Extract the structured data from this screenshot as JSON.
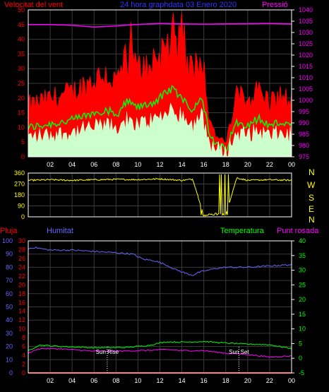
{
  "header": {
    "left_title": "Velocitat del vent",
    "center_title": "24 hora graphdata  03 Enero 2020",
    "right_title": "Pressió"
  },
  "lower_header": {
    "rain": "Pluja",
    "humidity": "Humitat",
    "temperature": "Temperatura",
    "dewpoint": "Punt rosada"
  },
  "direction_letters": [
    "N",
    "W",
    "S",
    "E",
    "N"
  ],
  "colors": {
    "background": "#000000",
    "frame": "#ffffff",
    "grid": "#3b3b3b",
    "wind_gust": "#ff0000",
    "wind_avg": "#00ff00",
    "wind_speed": "#ccffcc",
    "pressure": "#ff00ff",
    "direction": "#ffff00",
    "humidity": "#6666ff",
    "temperature": "#00ff00",
    "dewpoint": "#ff00ff",
    "rain": "#ff0000",
    "title_blue": "#3333ff",
    "event_marker": "#ffffff"
  },
  "chart_data": [
    {
      "type": "line",
      "name": "wind",
      "title": "24 hora graphdata  03 Enero 2020",
      "xlabel": "",
      "x_ticks": [
        "02",
        "04",
        "06",
        "08",
        "10",
        "12",
        "14",
        "16",
        "18",
        "20",
        "22",
        "00"
      ],
      "x_range_hours": [
        0,
        24
      ],
      "ylim_left": [
        0,
        50
      ],
      "y_ticks_left": [
        0,
        5,
        10,
        15,
        20,
        25,
        30,
        35,
        40,
        45,
        50
      ],
      "ylim_right": [
        975,
        1040
      ],
      "y_ticks_right": [
        975,
        980,
        985,
        990,
        995,
        1000,
        1005,
        1010,
        1015,
        1020,
        1025,
        1030,
        1035,
        1040
      ],
      "grid": true,
      "series": [
        {
          "name": "Velocitat del vent",
          "color_key": "wind_gust",
          "profile_hours": [
            0,
            2,
            4,
            5,
            6,
            7,
            8,
            9,
            10,
            11,
            12,
            13,
            14,
            15,
            15.8,
            16.5,
            17,
            18,
            19,
            20,
            21,
            22,
            23,
            24
          ],
          "values": [
            16,
            18,
            20,
            22,
            24,
            26,
            23,
            30,
            27,
            29,
            32,
            37,
            33,
            26,
            34,
            12,
            7,
            4,
            19,
            18,
            21,
            17,
            19,
            17
          ]
        },
        {
          "name": "Pressió",
          "color_key": "pressure",
          "profile_hours": [
            0,
            2,
            4,
            6,
            8,
            10,
            12,
            14,
            16,
            18,
            20,
            22,
            24
          ],
          "values": [
            1033.5,
            1033.5,
            1033.2,
            1032.4,
            1032.9,
            1033.6,
            1034.0,
            1033.8,
            1033.7,
            1033.8,
            1033.9,
            1034.0,
            1033.8
          ]
        }
      ]
    },
    {
      "type": "line",
      "name": "wind_direction",
      "y_ticks": [
        0,
        90,
        180,
        270,
        360
      ],
      "ylim": [
        0,
        360
      ],
      "x_range_hours": [
        0,
        24
      ],
      "grid": true,
      "series": [
        {
          "name": "direction",
          "color_key": "direction",
          "profile_hours": [
            0,
            2,
            4,
            6,
            8,
            10,
            12,
            14,
            15,
            16,
            17,
            18,
            19,
            20,
            22,
            24
          ],
          "values": [
            300,
            305,
            300,
            305,
            308,
            306,
            312,
            300,
            310,
            10,
            30,
            20,
            320,
            300,
            305,
            300
          ]
        }
      ]
    },
    {
      "type": "line",
      "name": "humidity_temp",
      "x_ticks": [
        "02",
        "04",
        "06",
        "08",
        "10",
        "12",
        "14",
        "16",
        "18",
        "20",
        "22",
        "00"
      ],
      "x_range_hours": [
        0,
        24
      ],
      "ylim_humidity": [
        0,
        100
      ],
      "y_ticks_humidity": [
        0,
        10,
        20,
        30,
        40,
        50,
        60,
        70,
        80,
        90,
        100
      ],
      "ylim_rain": [
        0,
        30
      ],
      "y_ticks_rain": [
        0,
        2,
        4,
        6,
        8,
        10,
        12,
        14,
        16,
        18,
        20,
        22,
        24,
        26,
        28,
        30
      ],
      "ylim_temp": [
        -5,
        40
      ],
      "y_ticks_temp": [
        -5,
        0,
        5,
        10,
        15,
        20,
        25,
        30,
        35,
        40
      ],
      "grid": true,
      "annotations": [
        {
          "label": "Sun Rise",
          "hour": 7.2
        },
        {
          "label": "Sun Set",
          "hour": 19.2
        }
      ],
      "series": [
        {
          "name": "Humitat",
          "color_key": "humidity",
          "profile_hours": [
            0,
            0.5,
            2,
            4,
            6,
            8,
            9.5,
            10.5,
            11.5,
            12.5,
            13.5,
            14.5,
            15,
            15.5,
            16,
            17,
            18,
            20,
            22,
            24
          ],
          "values": [
            94,
            95,
            93,
            93,
            92,
            91,
            90,
            86,
            85,
            82,
            78,
            75,
            74,
            76,
            77,
            79,
            80,
            80,
            81,
            82
          ]
        },
        {
          "name": "Temperatura",
          "color_key": "temperature",
          "profile_hours": [
            0,
            1,
            3,
            6,
            9,
            11,
            12.5,
            14,
            16,
            18,
            20,
            22,
            24
          ],
          "values": [
            2.5,
            4.5,
            4.0,
            3.6,
            3.7,
            4.4,
            5.6,
            5.5,
            5.7,
            5.2,
            4.8,
            4.6,
            3.3
          ]
        },
        {
          "name": "Punt rosada",
          "color_key": "dewpoint",
          "profile_hours": [
            0,
            1,
            3,
            6,
            9,
            11,
            12.5,
            14,
            16,
            18,
            20,
            22,
            24
          ],
          "values": [
            1.7,
            3.3,
            3.2,
            2.4,
            2.5,
            2.7,
            3.0,
            2.6,
            2.6,
            1.7,
            1.3,
            0.4,
            0.8
          ]
        },
        {
          "name": "Pluja",
          "color_key": "rain",
          "profile_hours": [
            0,
            24
          ],
          "values": [
            0,
            0
          ]
        }
      ]
    }
  ]
}
